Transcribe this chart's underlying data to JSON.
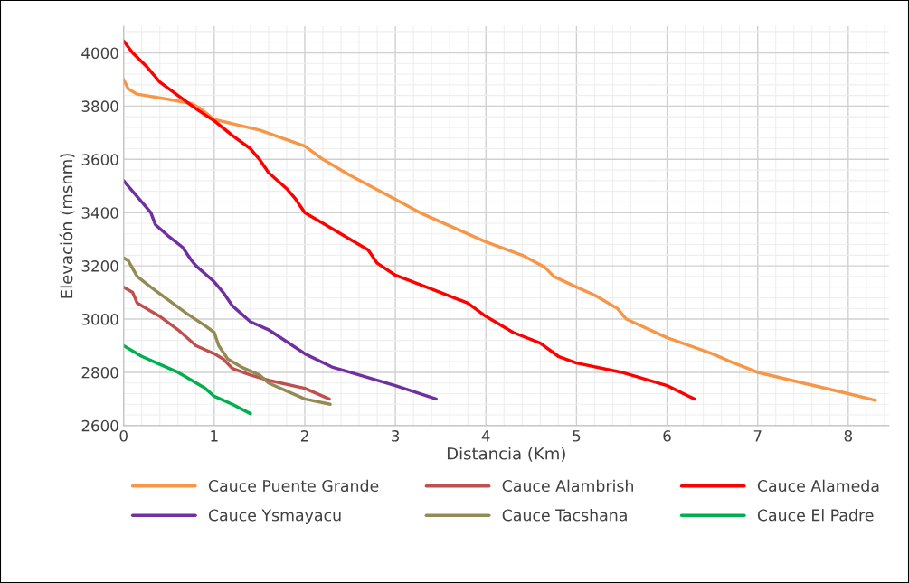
{
  "chart_data": {
    "type": "line",
    "xlabel": "Distancia (Km)",
    "ylabel": "Elevación (msnm)",
    "xlim": [
      0,
      8.45
    ],
    "xticks": [
      0,
      1,
      2,
      3,
      4,
      5,
      6,
      7,
      8
    ],
    "ylim": [
      2600,
      4100
    ],
    "yticks": [
      2600,
      2800,
      3000,
      3200,
      3400,
      3600,
      3800,
      4000
    ],
    "grid": true,
    "legend": "bottom",
    "marker": "none",
    "line_style": "solid",
    "series": [
      {
        "name": "Cauce Puente Grande",
        "color": "#f79646",
        "x": [
          0,
          0.05,
          0.15,
          0.5,
          0.75,
          0.85,
          1.0,
          1.5,
          2.0,
          2.2,
          2.5,
          3.0,
          3.3,
          3.6,
          4.0,
          4.4,
          4.65,
          4.75,
          5.0,
          5.2,
          5.45,
          5.55,
          6.0,
          6.5,
          6.7,
          7.0,
          7.5,
          8.0,
          8.3
        ],
        "values": [
          3900,
          3865,
          3845,
          3825,
          3810,
          3790,
          3750,
          3710,
          3650,
          3600,
          3540,
          3450,
          3395,
          3350,
          3290,
          3240,
          3195,
          3160,
          3120,
          3090,
          3040,
          3000,
          2930,
          2870,
          2840,
          2800,
          2760,
          2720,
          2695
        ]
      },
      {
        "name": "Cauce Alambrish",
        "color": "#c0504d",
        "x": [
          0,
          0.1,
          0.15,
          0.3,
          0.4,
          0.6,
          0.8,
          1.0,
          1.1,
          1.2,
          1.4,
          1.6,
          2.0,
          2.27
        ],
        "values": [
          3120,
          3100,
          3060,
          3030,
          3010,
          2960,
          2900,
          2870,
          2850,
          2815,
          2790,
          2770,
          2740,
          2700
        ]
      },
      {
        "name": "Cauce Alameda",
        "color": "#ff0000",
        "x": [
          0,
          0.1,
          0.25,
          0.4,
          0.6,
          0.8,
          1.0,
          1.2,
          1.4,
          1.5,
          1.6,
          1.8,
          1.9,
          2.0,
          2.2,
          2.5,
          2.7,
          2.8,
          3.0,
          3.5,
          3.8,
          4.0,
          4.3,
          4.6,
          4.8,
          5.0,
          5.5,
          6.0,
          6.3
        ],
        "values": [
          4045,
          4000,
          3950,
          3890,
          3840,
          3790,
          3745,
          3690,
          3640,
          3600,
          3550,
          3490,
          3450,
          3400,
          3360,
          3300,
          3260,
          3210,
          3165,
          3100,
          3060,
          3010,
          2950,
          2910,
          2860,
          2835,
          2800,
          2750,
          2700
        ]
      },
      {
        "name": "Cauce Ysmayacu",
        "color": "#7030a0",
        "x": [
          0,
          0.05,
          0.2,
          0.3,
          0.35,
          0.5,
          0.65,
          0.75,
          0.8,
          1.0,
          1.1,
          1.2,
          1.3,
          1.4,
          1.6,
          2.0,
          2.3,
          2.5,
          3.0,
          3.45
        ],
        "values": [
          3520,
          3500,
          3440,
          3400,
          3355,
          3310,
          3270,
          3220,
          3200,
          3140,
          3100,
          3050,
          3020,
          2990,
          2960,
          2870,
          2820,
          2800,
          2750,
          2700
        ]
      },
      {
        "name": "Cauce Tacshana",
        "color": "#948a54",
        "x": [
          0,
          0.05,
          0.15,
          0.3,
          0.5,
          0.7,
          0.9,
          1.0,
          1.05,
          1.15,
          1.3,
          1.5,
          1.6,
          1.8,
          2.0,
          2.28
        ],
        "values": [
          3230,
          3220,
          3160,
          3120,
          3070,
          3020,
          2975,
          2950,
          2900,
          2850,
          2820,
          2790,
          2760,
          2730,
          2700,
          2680
        ]
      },
      {
        "name": "Cauce El Padre",
        "color": "#00b050",
        "x": [
          0,
          0.2,
          0.4,
          0.6,
          0.7,
          0.9,
          1.0,
          1.2,
          1.4
        ],
        "values": [
          2900,
          2860,
          2830,
          2800,
          2780,
          2740,
          2710,
          2680,
          2645
        ]
      }
    ]
  }
}
